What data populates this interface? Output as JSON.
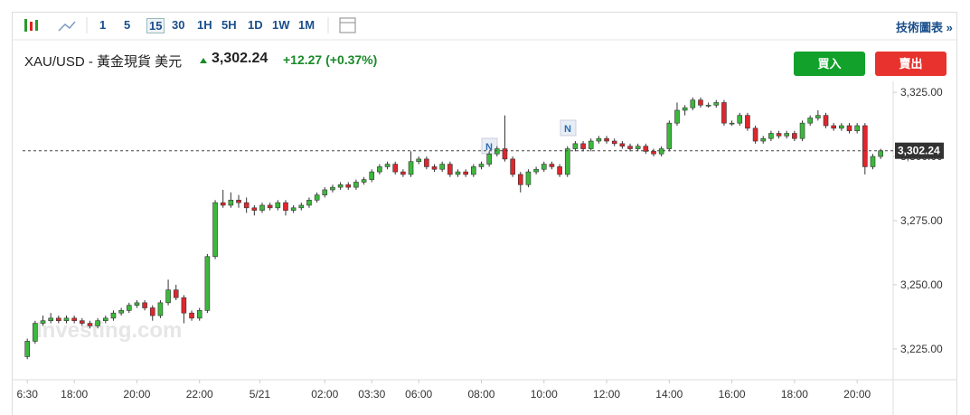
{
  "toolbar": {
    "intervals": [
      "1",
      "5",
      "15",
      "30",
      "1H",
      "5H",
      "1D",
      "1W",
      "1M"
    ],
    "selected_interval": 2,
    "link": "技術圖表 »"
  },
  "header": {
    "title": "XAU/USD - 黃金現貨 美元",
    "change": "+12.27 (+0.37%)",
    "buy": "買入",
    "sell": "賣出"
  },
  "chart_data": {
    "type": "candlestick",
    "watermark": "Investing.com",
    "price": {
      "value": 3302.24,
      "label": "3,302.24"
    },
    "up_color": "#3cb83c",
    "down_color": "#e0262d",
    "xlim": [
      -0.6,
      110.6
    ],
    "xticks": [
      {
        "value": 0,
        "label": "6:30"
      },
      {
        "value": 6,
        "label": "18:00"
      },
      {
        "value": 14,
        "label": "20:00"
      },
      {
        "value": 22,
        "label": "22:00"
      },
      {
        "value": 29.7,
        "label": "5/21"
      },
      {
        "value": 38,
        "label": "02:00"
      },
      {
        "value": 44,
        "label": "03:30"
      },
      {
        "value": 50,
        "label": "06:00"
      },
      {
        "value": 58,
        "label": "08:00"
      },
      {
        "value": 66,
        "label": "10:00"
      },
      {
        "value": 74,
        "label": "12:00"
      },
      {
        "value": 82,
        "label": "14:00"
      },
      {
        "value": 90,
        "label": "16:00"
      },
      {
        "value": 98,
        "label": "18:00"
      },
      {
        "value": 106,
        "label": "20:00"
      }
    ],
    "ylim": [
      3213,
      3327.5
    ],
    "yticks": [
      {
        "value": 3225,
        "label": "3,225.00"
      },
      {
        "value": 3250,
        "label": "3,250.00"
      },
      {
        "value": 3275,
        "label": "3,275.00"
      },
      {
        "value": 3300,
        "label": "3,300.00"
      },
      {
        "value": 3325,
        "label": "3,325.00"
      }
    ],
    "ohlc": [
      [
        3222,
        3229,
        3221,
        3228
      ],
      [
        3228,
        3236,
        3227,
        3235
      ],
      [
        3235,
        3238,
        3234,
        3236
      ],
      [
        3236,
        3239,
        3235,
        3237
      ],
      [
        3237,
        3238,
        3235,
        3236
      ],
      [
        3236,
        3238,
        3235,
        3237
      ],
      [
        3237,
        3238,
        3235,
        3236
      ],
      [
        3236,
        3237,
        3234,
        3235
      ],
      [
        3235,
        3236,
        3233,
        3234
      ],
      [
        3234,
        3237,
        3233,
        3236
      ],
      [
        3236,
        3238,
        3235,
        3237
      ],
      [
        3237,
        3240,
        3236,
        3239
      ],
      [
        3239,
        3241,
        3238,
        3240
      ],
      [
        3240,
        3243,
        3239,
        3242
      ],
      [
        3242,
        3244,
        3241,
        3243
      ],
      [
        3243,
        3244,
        3240,
        3241
      ],
      [
        3241,
        3242,
        3236,
        3238
      ],
      [
        3238,
        3244,
        3237,
        3243
      ],
      [
        3243,
        3252,
        3242,
        3248
      ],
      [
        3248,
        3250,
        3244,
        3245
      ],
      [
        3245,
        3246,
        3235,
        3239
      ],
      [
        3239,
        3240,
        3236,
        3237
      ],
      [
        3237,
        3241,
        3236,
        3240
      ],
      [
        3240,
        3262,
        3239,
        3261
      ],
      [
        3261,
        3283,
        3260,
        3282
      ],
      [
        3282,
        3287,
        3280,
        3281
      ],
      [
        3281,
        3286,
        3280,
        3283
      ],
      [
        3283,
        3285,
        3280,
        3282
      ],
      [
        3282,
        3284,
        3278,
        3280
      ],
      [
        3280,
        3281,
        3277,
        3279
      ],
      [
        3279,
        3282,
        3278,
        3281
      ],
      [
        3281,
        3282,
        3279,
        3280
      ],
      [
        3280,
        3283,
        3279,
        3282
      ],
      [
        3282,
        3283,
        3277,
        3279
      ],
      [
        3279,
        3281,
        3278,
        3280
      ],
      [
        3280,
        3282,
        3279,
        3281
      ],
      [
        3281,
        3284,
        3280,
        3283
      ],
      [
        3283,
        3286,
        3282,
        3285
      ],
      [
        3285,
        3288,
        3284,
        3287
      ],
      [
        3287,
        3289,
        3286,
        3288
      ],
      [
        3288,
        3290,
        3287,
        3289
      ],
      [
        3289,
        3290,
        3287,
        3288
      ],
      [
        3288,
        3291,
        3287,
        3290
      ],
      [
        3290,
        3292,
        3289,
        3291
      ],
      [
        3291,
        3295,
        3290,
        3294
      ],
      [
        3294,
        3297,
        3293,
        3296
      ],
      [
        3296,
        3298,
        3295,
        3297
      ],
      [
        3297,
        3298,
        3293,
        3294
      ],
      [
        3294,
        3295,
        3292,
        3293
      ],
      [
        3293,
        3302,
        3292,
        3298
      ],
      [
        3298,
        3300,
        3297,
        3299
      ],
      [
        3299,
        3300,
        3295,
        3296
      ],
      [
        3296,
        3297,
        3294,
        3295
      ],
      [
        3295,
        3298,
        3294,
        3297
      ],
      [
        3297,
        3298,
        3292,
        3293
      ],
      [
        3293,
        3295,
        3292,
        3294
      ],
      [
        3294,
        3295,
        3292,
        3293
      ],
      [
        3293,
        3297,
        3292,
        3296
      ],
      [
        3296,
        3298,
        3295,
        3297
      ],
      [
        3297,
        3302,
        3296,
        3301
      ],
      [
        3301,
        3304,
        3300,
        3303
      ],
      [
        3303,
        3316,
        3298,
        3299
      ],
      [
        3299,
        3300,
        3292,
        3293
      ],
      [
        3293,
        3294,
        3286,
        3289
      ],
      [
        3289,
        3295,
        3288,
        3294
      ],
      [
        3294,
        3296,
        3293,
        3295
      ],
      [
        3295,
        3298,
        3294,
        3297
      ],
      [
        3297,
        3298,
        3295,
        3296
      ],
      [
        3296,
        3297,
        3292,
        3293
      ],
      [
        3293,
        3304,
        3292,
        3303
      ],
      [
        3303,
        3306,
        3302,
        3305
      ],
      [
        3305,
        3306,
        3302,
        3303
      ],
      [
        3303,
        3307,
        3302,
        3306
      ],
      [
        3306,
        3308,
        3305,
        3307
      ],
      [
        3307,
        3308,
        3305,
        3306
      ],
      [
        3306,
        3307,
        3304,
        3305
      ],
      [
        3305,
        3306,
        3303,
        3304
      ],
      [
        3304,
        3305,
        3302,
        3303
      ],
      [
        3303,
        3305,
        3302,
        3304
      ],
      [
        3304,
        3305,
        3301,
        3302
      ],
      [
        3302,
        3303,
        3300,
        3301
      ],
      [
        3301,
        3304,
        3300,
        3303
      ],
      [
        3303,
        3314,
        3302,
        3313
      ],
      [
        3313,
        3321,
        3312,
        3318
      ],
      [
        3318,
        3320,
        3316,
        3319
      ],
      [
        3319,
        3323,
        3318,
        3322
      ],
      [
        3322,
        3323,
        3319,
        3320
      ],
      [
        3320,
        3321,
        3319,
        3320
      ],
      [
        3320,
        3322,
        3319,
        3321
      ],
      [
        3321,
        3322,
        3312,
        3313
      ],
      [
        3313,
        3314,
        3312,
        3313
      ],
      [
        3313,
        3317,
        3312,
        3316
      ],
      [
        3316,
        3317,
        3310,
        3311
      ],
      [
        3311,
        3312,
        3305,
        3306
      ],
      [
        3306,
        3308,
        3305,
        3307
      ],
      [
        3307,
        3310,
        3306,
        3309
      ],
      [
        3309,
        3310,
        3307,
        3308
      ],
      [
        3308,
        3310,
        3307,
        3309
      ],
      [
        3309,
        3310,
        3306,
        3307
      ],
      [
        3307,
        3314,
        3306,
        3313
      ],
      [
        3313,
        3316,
        3312,
        3315
      ],
      [
        3315,
        3318,
        3314,
        3316
      ],
      [
        3316,
        3317,
        3311,
        3312
      ],
      [
        3312,
        3313,
        3310,
        3311
      ],
      [
        3311,
        3313,
        3310,
        3312
      ],
      [
        3312,
        3313,
        3309,
        3310
      ],
      [
        3310,
        3313,
        3309,
        3312
      ],
      [
        3312,
        3313,
        3293,
        3296
      ],
      [
        3296,
        3301,
        3295,
        3300
      ],
      [
        3300,
        3303,
        3299,
        3302.24
      ]
    ]
  }
}
